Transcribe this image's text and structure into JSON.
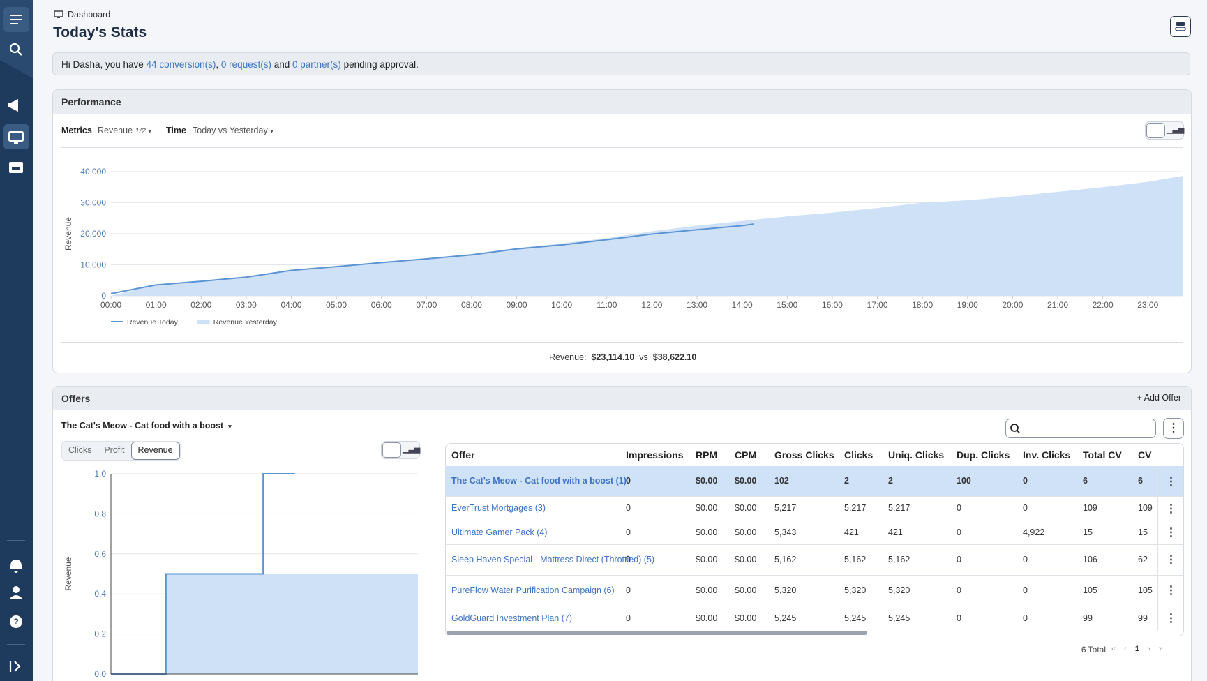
{
  "breadcrumb": "Dashboard",
  "title": "Today's Stats",
  "alert": {
    "prefix": "Hi Dasha, you have",
    "conversions": "44 conversion(s)",
    "sep": ",",
    "requests": "0 request(s)",
    "and": "and",
    "partners": "0 partner(s)",
    "suffix": "pending approval."
  },
  "performance": {
    "title": "Performance",
    "metrics_label": "Metrics",
    "metrics_value": "Revenue",
    "metrics_count": "1/2",
    "time_label": "Time",
    "time_value": "Today vs Yesterday",
    "summary_label": "Revenue:",
    "today_total": "$23,114.10",
    "vs": "vs",
    "yesterday_total": "$38,622.10"
  },
  "offers": {
    "title": "Offers",
    "add": "Add Offer",
    "selected": "The Cat's Meow - Cat food with a boost",
    "tabs": [
      "Clicks",
      "Profit",
      "Revenue"
    ],
    "total": "6 Total",
    "page": "1"
  },
  "table": {
    "columns": [
      "Offer",
      "Impressions",
      "RPM",
      "CPM",
      "Gross Clicks",
      "Clicks",
      "Uniq. Clicks",
      "Dup. Clicks",
      "Inv. Clicks",
      "Total CV",
      "CV"
    ],
    "rows": [
      [
        "The Cat's Meow - Cat food with a boost (1)",
        "0",
        "$0.00",
        "$0.00",
        "102",
        "2",
        "2",
        "100",
        "0",
        "6",
        "6"
      ],
      [
        "EverTrust Mortgages (3)",
        "0",
        "$0.00",
        "$0.00",
        "5,217",
        "5,217",
        "5,217",
        "0",
        "0",
        "109",
        "109"
      ],
      [
        "Ultimate Gamer Pack (4)",
        "0",
        "$0.00",
        "$0.00",
        "5,343",
        "421",
        "421",
        "0",
        "4,922",
        "15",
        "15"
      ],
      [
        "Sleep Haven Special - Mattress Direct (Throttled) (5)",
        "0",
        "$0.00",
        "$0.00",
        "5,162",
        "5,162",
        "5,162",
        "0",
        "0",
        "106",
        "62"
      ],
      [
        "PureFlow Water Purification Campaign (6)",
        "0",
        "$0.00",
        "$0.00",
        "5,320",
        "5,320",
        "5,320",
        "0",
        "0",
        "105",
        "105"
      ],
      [
        "GoldGuard Investment Plan (7)",
        "0",
        "$0.00",
        "$0.00",
        "5,245",
        "5,245",
        "5,245",
        "0",
        "0",
        "99",
        "99"
      ]
    ]
  },
  "chart_data": [
    {
      "type": "line",
      "ylabel": "Revenue",
      "grid": true,
      "xlim": [
        0,
        23.77
      ],
      "ylim": [
        0,
        40000
      ],
      "xticks": [
        {
          "value": 0,
          "label": "00:00"
        },
        {
          "value": 1,
          "label": "01:00"
        },
        {
          "value": 2,
          "label": "02:00"
        },
        {
          "value": 3,
          "label": "03:00"
        },
        {
          "value": 4,
          "label": "04:00"
        },
        {
          "value": 5,
          "label": "05:00"
        },
        {
          "value": 6,
          "label": "06:00"
        },
        {
          "value": 7,
          "label": "07:00"
        },
        {
          "value": 8,
          "label": "08:00"
        },
        {
          "value": 9,
          "label": "09:00"
        },
        {
          "value": 10,
          "label": "10:00"
        },
        {
          "value": 11,
          "label": "11:00"
        },
        {
          "value": 12,
          "label": "12:00"
        },
        {
          "value": 13,
          "label": "13:00"
        },
        {
          "value": 14,
          "label": "14:00"
        },
        {
          "value": 15,
          "label": "15:00"
        },
        {
          "value": 16,
          "label": "16:00"
        },
        {
          "value": 17,
          "label": "17:00"
        },
        {
          "value": 18,
          "label": "18:00"
        },
        {
          "value": 19,
          "label": "19:00"
        },
        {
          "value": 20,
          "label": "20:00"
        },
        {
          "value": 21,
          "label": "21:00"
        },
        {
          "value": 22,
          "label": "22:00"
        },
        {
          "value": 23,
          "label": "23:00"
        }
      ],
      "yticks": [
        0,
        {
          "value": 10000,
          "label": "10,000"
        },
        {
          "value": 20000,
          "label": "20,000"
        },
        {
          "value": 30000,
          "label": "30,000"
        },
        {
          "value": 40000,
          "label": "40,000"
        }
      ],
      "series": [
        {
          "name": "Revenue Today",
          "color": "#5b93d3",
          "fill": false,
          "x": [
            0,
            1,
            2,
            3,
            4,
            5,
            6,
            7,
            8,
            9,
            10,
            11,
            12,
            13,
            14,
            14.25
          ],
          "values": [
            700,
            3500,
            4700,
            6000,
            8200,
            9400,
            10700,
            11900,
            13200,
            15100,
            16400,
            18100,
            19900,
            21300,
            22600,
            23114
          ]
        },
        {
          "name": "Revenue Yesterday",
          "color": "#cfe1f7",
          "fill": true,
          "x": [
            0,
            1,
            2,
            3,
            4,
            5,
            6,
            7,
            8,
            9,
            10,
            11,
            12,
            13,
            14,
            15,
            16,
            17,
            18,
            19,
            20,
            21,
            22,
            23,
            23.77
          ],
          "values": [
            0,
            3500,
            4900,
            6200,
            8200,
            9500,
            10900,
            12100,
            13500,
            15400,
            16900,
            18600,
            20800,
            22600,
            24100,
            25600,
            26800,
            28300,
            30000,
            30800,
            32000,
            33500,
            35000,
            36700,
            38622
          ]
        }
      ]
    },
    {
      "type": "line",
      "ylabel": "Revenue",
      "grid": true,
      "step": true,
      "xlim": [
        0,
        24
      ],
      "ylim": [
        0,
        1.0
      ],
      "yticks": [
        {
          "value": 0,
          "label": "0.0"
        },
        0.2,
        0.4,
        0.6,
        0.8,
        {
          "value": 1.0,
          "label": "1.0"
        }
      ],
      "series": [
        {
          "color": "#5b93d3",
          "fill": false,
          "x": [
            0,
            4.3,
            11.9,
            14.4
          ],
          "values": [
            0,
            0.5,
            1.0,
            1.0
          ]
        },
        {
          "color": "#cfe1f7",
          "fill": true,
          "x": [
            0,
            4.3,
            24
          ],
          "values": [
            0,
            0.5,
            0.5
          ]
        }
      ]
    }
  ]
}
